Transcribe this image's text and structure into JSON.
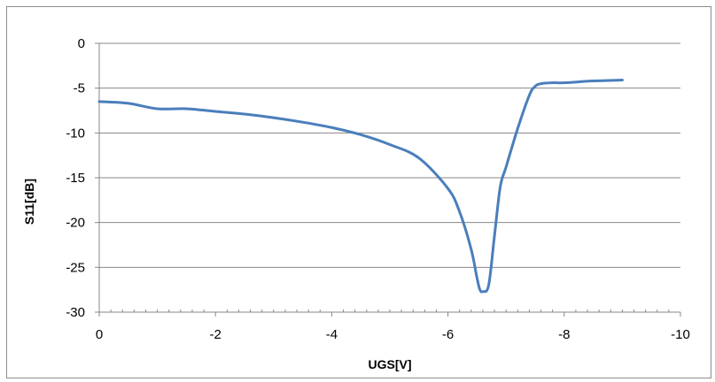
{
  "chart_data": {
    "type": "line",
    "title": "",
    "xlabel": "UGS[V]",
    "ylabel": "S11[dB]",
    "xlim": [
      0,
      -10
    ],
    "ylim": [
      -30,
      0
    ],
    "x_ticks": [
      0,
      -2,
      -4,
      -6,
      -8,
      -10
    ],
    "y_ticks": [
      0,
      -5,
      -10,
      -15,
      -20,
      -25,
      -30
    ],
    "x_tick_labels": [
      "0",
      "-2",
      "-4",
      "-6",
      "-8",
      "-10"
    ],
    "y_tick_labels": [
      "0",
      "-5",
      "-10",
      "-15",
      "-20",
      "-25",
      "-30"
    ],
    "grid": "horizontal",
    "legend": "none",
    "series": [
      {
        "color": "#4a7ebb",
        "x": [
          0,
          -0.5,
          -1,
          -1.5,
          -2,
          -2.5,
          -3,
          -3.5,
          -4,
          -4.5,
          -5,
          -5.5,
          -6,
          -6.2,
          -6.4,
          -6.5,
          -6.55,
          -6.6,
          -6.7,
          -6.8,
          -6.9,
          -7,
          -7.2,
          -7.4,
          -7.5,
          -7.6,
          -7.8,
          -8,
          -8.5,
          -9
        ],
        "y": [
          -6.5,
          -6.7,
          -7.3,
          -7.3,
          -7.6,
          -7.9,
          -8.3,
          -8.8,
          -9.4,
          -10.2,
          -11.3,
          -12.8,
          -16.2,
          -18.8,
          -23,
          -26.2,
          -27.5,
          -27.7,
          -27,
          -21.5,
          -16,
          -13.8,
          -9.5,
          -5.8,
          -4.8,
          -4.5,
          -4.4,
          -4.4,
          -4.2,
          -4.1
        ]
      }
    ]
  }
}
